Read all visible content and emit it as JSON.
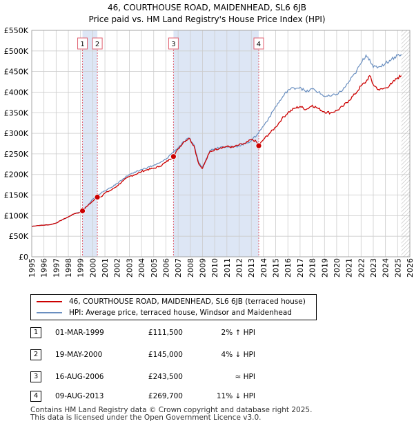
{
  "title": {
    "line1": "46, COURTHOUSE ROAD, MAIDENHEAD, SL6 6JB",
    "line2": "Price paid vs. HM Land Registry's House Price Index (HPI)"
  },
  "colors": {
    "property": "#cc0000",
    "hpi": "#6a8fc0",
    "shade": "#dde6f5",
    "marker_line": "#e06070",
    "grid": "#cccccc"
  },
  "chart_data": {
    "type": "line",
    "title": "46, COURTHOUSE ROAD, MAIDENHEAD, SL6 6JB — Price paid vs. HM Land Registry's House Price Index (HPI)",
    "xlim": [
      1995,
      2026
    ],
    "ylim": [
      0,
      550000
    ],
    "y_ticks": [
      0,
      50000,
      100000,
      150000,
      200000,
      250000,
      300000,
      350000,
      400000,
      450000,
      500000,
      550000
    ],
    "y_tick_labels": [
      "£0",
      "£50K",
      "£100K",
      "£150K",
      "£200K",
      "£250K",
      "£300K",
      "£350K",
      "£400K",
      "£450K",
      "£500K",
      "£550K"
    ],
    "x_ticks": [
      1995,
      1996,
      1997,
      1998,
      1999,
      2000,
      2001,
      2002,
      2003,
      2004,
      2005,
      2006,
      2007,
      2008,
      2009,
      2010,
      2011,
      2012,
      2013,
      2014,
      2015,
      2016,
      2017,
      2018,
      2019,
      2020,
      2021,
      2022,
      2023,
      2024,
      2025,
      2026
    ],
    "x_tick_labels": [
      "1995",
      "1996",
      "1997",
      "1998",
      "1999",
      "2000",
      "2001",
      "2002",
      "2003",
      "2004",
      "2005",
      "2006",
      "2007",
      "2008",
      "2009",
      "2010",
      "2011",
      "2012",
      "2013",
      "2014",
      "2015",
      "2016",
      "2017",
      "2018",
      "2019",
      "2020",
      "2021",
      "2022",
      "2023",
      "2024",
      "2025",
      "2026"
    ],
    "shaded_ranges": [
      [
        1999.16,
        2000.38
      ],
      [
        2006.62,
        2013.61
      ]
    ],
    "hatched_from": 2025.3,
    "series": [
      {
        "name": "46, COURTHOUSE ROAD, MAIDENHEAD, SL6 6JB (terraced house)",
        "x": [
          1995.0,
          1995.5,
          1996.0,
          1996.5,
          1997.0,
          1997.5,
          1998.0,
          1998.5,
          1999.0,
          1999.16,
          1999.5,
          2000.0,
          2000.38,
          2000.7,
          2001.0,
          2001.5,
          2002.0,
          2002.5,
          2003.0,
          2003.5,
          2004.0,
          2004.5,
          2005.0,
          2005.5,
          2006.0,
          2006.62,
          2007.0,
          2007.5,
          2007.9,
          2008.3,
          2008.7,
          2009.0,
          2009.3,
          2009.6,
          2010.0,
          2010.5,
          2011.0,
          2011.5,
          2012.0,
          2012.5,
          2013.0,
          2013.4,
          2013.61,
          2014.0,
          2014.5,
          2015.0,
          2015.5,
          2016.0,
          2016.5,
          2017.0,
          2017.5,
          2018.0,
          2018.5,
          2019.0,
          2019.5,
          2020.0,
          2020.5,
          2021.0,
          2021.5,
          2022.0,
          2022.4,
          2022.7,
          2023.0,
          2023.5,
          2024.0,
          2024.5,
          2025.0,
          2025.3
        ],
        "values": [
          74000,
          76000,
          77000,
          78000,
          82000,
          90000,
          97000,
          105000,
          108000,
          111500,
          122000,
          135000,
          145000,
          146000,
          155000,
          162000,
          172000,
          185000,
          195000,
          200000,
          207000,
          212000,
          215000,
          220000,
          230000,
          243500,
          262000,
          280000,
          288000,
          270000,
          225000,
          215000,
          235000,
          255000,
          260000,
          265000,
          268000,
          266000,
          272000,
          275000,
          285000,
          280000,
          269700,
          285000,
          300000,
          315000,
          335000,
          350000,
          360000,
          365000,
          358000,
          368000,
          360000,
          352000,
          350000,
          355000,
          365000,
          380000,
          395000,
          415000,
          425000,
          440000,
          418000,
          405000,
          410000,
          420000,
          435000,
          440000
        ]
      },
      {
        "name": "HPI: Average price, terraced house, Windsor and Maidenhead",
        "x": [
          1995.0,
          1995.5,
          1996.0,
          1996.5,
          1997.0,
          1997.5,
          1998.0,
          1998.5,
          1999.0,
          1999.5,
          2000.0,
          2000.5,
          2001.0,
          2001.5,
          2002.0,
          2002.5,
          2003.0,
          2003.5,
          2004.0,
          2004.5,
          2005.0,
          2005.5,
          2006.0,
          2006.5,
          2007.0,
          2007.5,
          2007.9,
          2008.3,
          2008.7,
          2009.0,
          2009.3,
          2009.6,
          2010.0,
          2010.5,
          2011.0,
          2011.5,
          2012.0,
          2012.5,
          2013.0,
          2013.5,
          2014.0,
          2014.5,
          2015.0,
          2015.5,
          2016.0,
          2016.5,
          2017.0,
          2017.5,
          2018.0,
          2018.5,
          2019.0,
          2019.5,
          2020.0,
          2020.5,
          2021.0,
          2021.5,
          2022.0,
          2022.4,
          2022.7,
          2023.0,
          2023.5,
          2024.0,
          2024.5,
          2025.0,
          2025.3
        ],
        "values": [
          74000,
          76000,
          77000,
          78000,
          82000,
          90000,
          97000,
          105000,
          109000,
          122000,
          140000,
          152000,
          160000,
          168000,
          178000,
          190000,
          200000,
          205000,
          212000,
          217000,
          222000,
          228000,
          237000,
          252000,
          265000,
          280000,
          288000,
          272000,
          228000,
          218000,
          238000,
          258000,
          263000,
          267000,
          268000,
          266000,
          270000,
          275000,
          282000,
          298000,
          318000,
          340000,
          365000,
          385000,
          405000,
          410000,
          412000,
          400000,
          408000,
          400000,
          390000,
          390000,
          395000,
          405000,
          425000,
          445000,
          470000,
          490000,
          480000,
          460000,
          462000,
          470000,
          480000,
          490000,
          492000
        ]
      }
    ],
    "sales": [
      {
        "label": "1",
        "x": 1999.16,
        "y": 111500
      },
      {
        "label": "2",
        "x": 2000.38,
        "y": 145000
      },
      {
        "label": "3",
        "x": 2006.62,
        "y": 243500
      },
      {
        "label": "4",
        "x": 2013.61,
        "y": 269700
      }
    ]
  },
  "legend": {
    "property": "46, COURTHOUSE ROAD, MAIDENHEAD, SL6 6JB (terraced house)",
    "hpi": "HPI: Average price, terraced house, Windsor and Maidenhead"
  },
  "sales_table": [
    {
      "num": "1",
      "date": "01-MAR-1999",
      "price": "£111,500",
      "relation": "2% ↑ HPI"
    },
    {
      "num": "2",
      "date": "19-MAY-2000",
      "price": "£145,000",
      "relation": "4% ↓ HPI"
    },
    {
      "num": "3",
      "date": "16-AUG-2006",
      "price": "£243,500",
      "relation": "≈ HPI"
    },
    {
      "num": "4",
      "date": "09-AUG-2013",
      "price": "£269,700",
      "relation": "11% ↓ HPI"
    }
  ],
  "footer": {
    "line1": "Contains HM Land Registry data © Crown copyright and database right 2025.",
    "line2": "This data is licensed under the Open Government Licence v3.0."
  }
}
